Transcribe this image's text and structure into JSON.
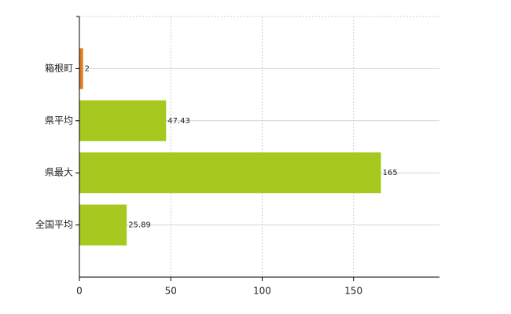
{
  "chart_data": {
    "type": "bar",
    "orientation": "horizontal",
    "categories": [
      "箱根町",
      "県平均",
      "県最大",
      "全国平均"
    ],
    "values": [
      2,
      47.43,
      165,
      25.89
    ],
    "colors": [
      "#e07b1f",
      "#a6c81f",
      "#a6c81f",
      "#a6c81f"
    ],
    "xlim": [
      0,
      197
    ],
    "xticks": [
      0,
      50,
      100,
      150
    ],
    "grid": true
  }
}
